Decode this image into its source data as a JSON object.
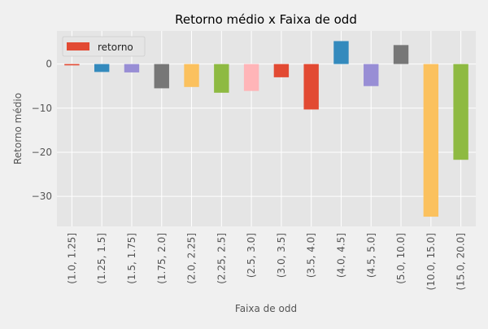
{
  "chart_data": {
    "type": "bar",
    "title": "Retorno médio x Faixa de odd",
    "xlabel": "Faixa de odd",
    "ylabel": "Retorno médio",
    "legend": {
      "placement": "top-left",
      "entries": [
        "retorno"
      ]
    },
    "grid": true,
    "ylim": [
      -36.8,
      7.5
    ],
    "yticks": [
      0,
      -10,
      -20,
      -30
    ],
    "ytick_labels": [
      "0",
      "−10",
      "−20",
      "−30"
    ],
    "categories": [
      "(1.0, 1.25]",
      "(1.25, 1.5]",
      "(1.5, 1.75]",
      "(1.75, 2.0]",
      "(2.0, 2.25]",
      "(2.25, 2.5]",
      "(2.5, 3.0]",
      "(3.0, 3.5]",
      "(3.5, 4.0]",
      "(4.0, 4.5]",
      "(4.5, 5.0]",
      "(5.0, 10.0]",
      "(10.0, 15.0]",
      "(15.0, 20.0]"
    ],
    "series": [
      {
        "name": "retorno",
        "values": [
          -0.3,
          -1.8,
          -1.9,
          -5.5,
          -5.2,
          -6.5,
          -6.1,
          -3.0,
          -10.3,
          5.2,
          -5.0,
          4.3,
          -34.6,
          -21.7
        ]
      }
    ],
    "colors": [
      "#E24A33",
      "#348ABD",
      "#988ED5",
      "#777777",
      "#FBC15E",
      "#8EBA42",
      "#FFB5B8",
      "#E24A33",
      "#E24A33",
      "#348ABD",
      "#988ED5",
      "#777777",
      "#FBC15E",
      "#8EBA42"
    ]
  }
}
